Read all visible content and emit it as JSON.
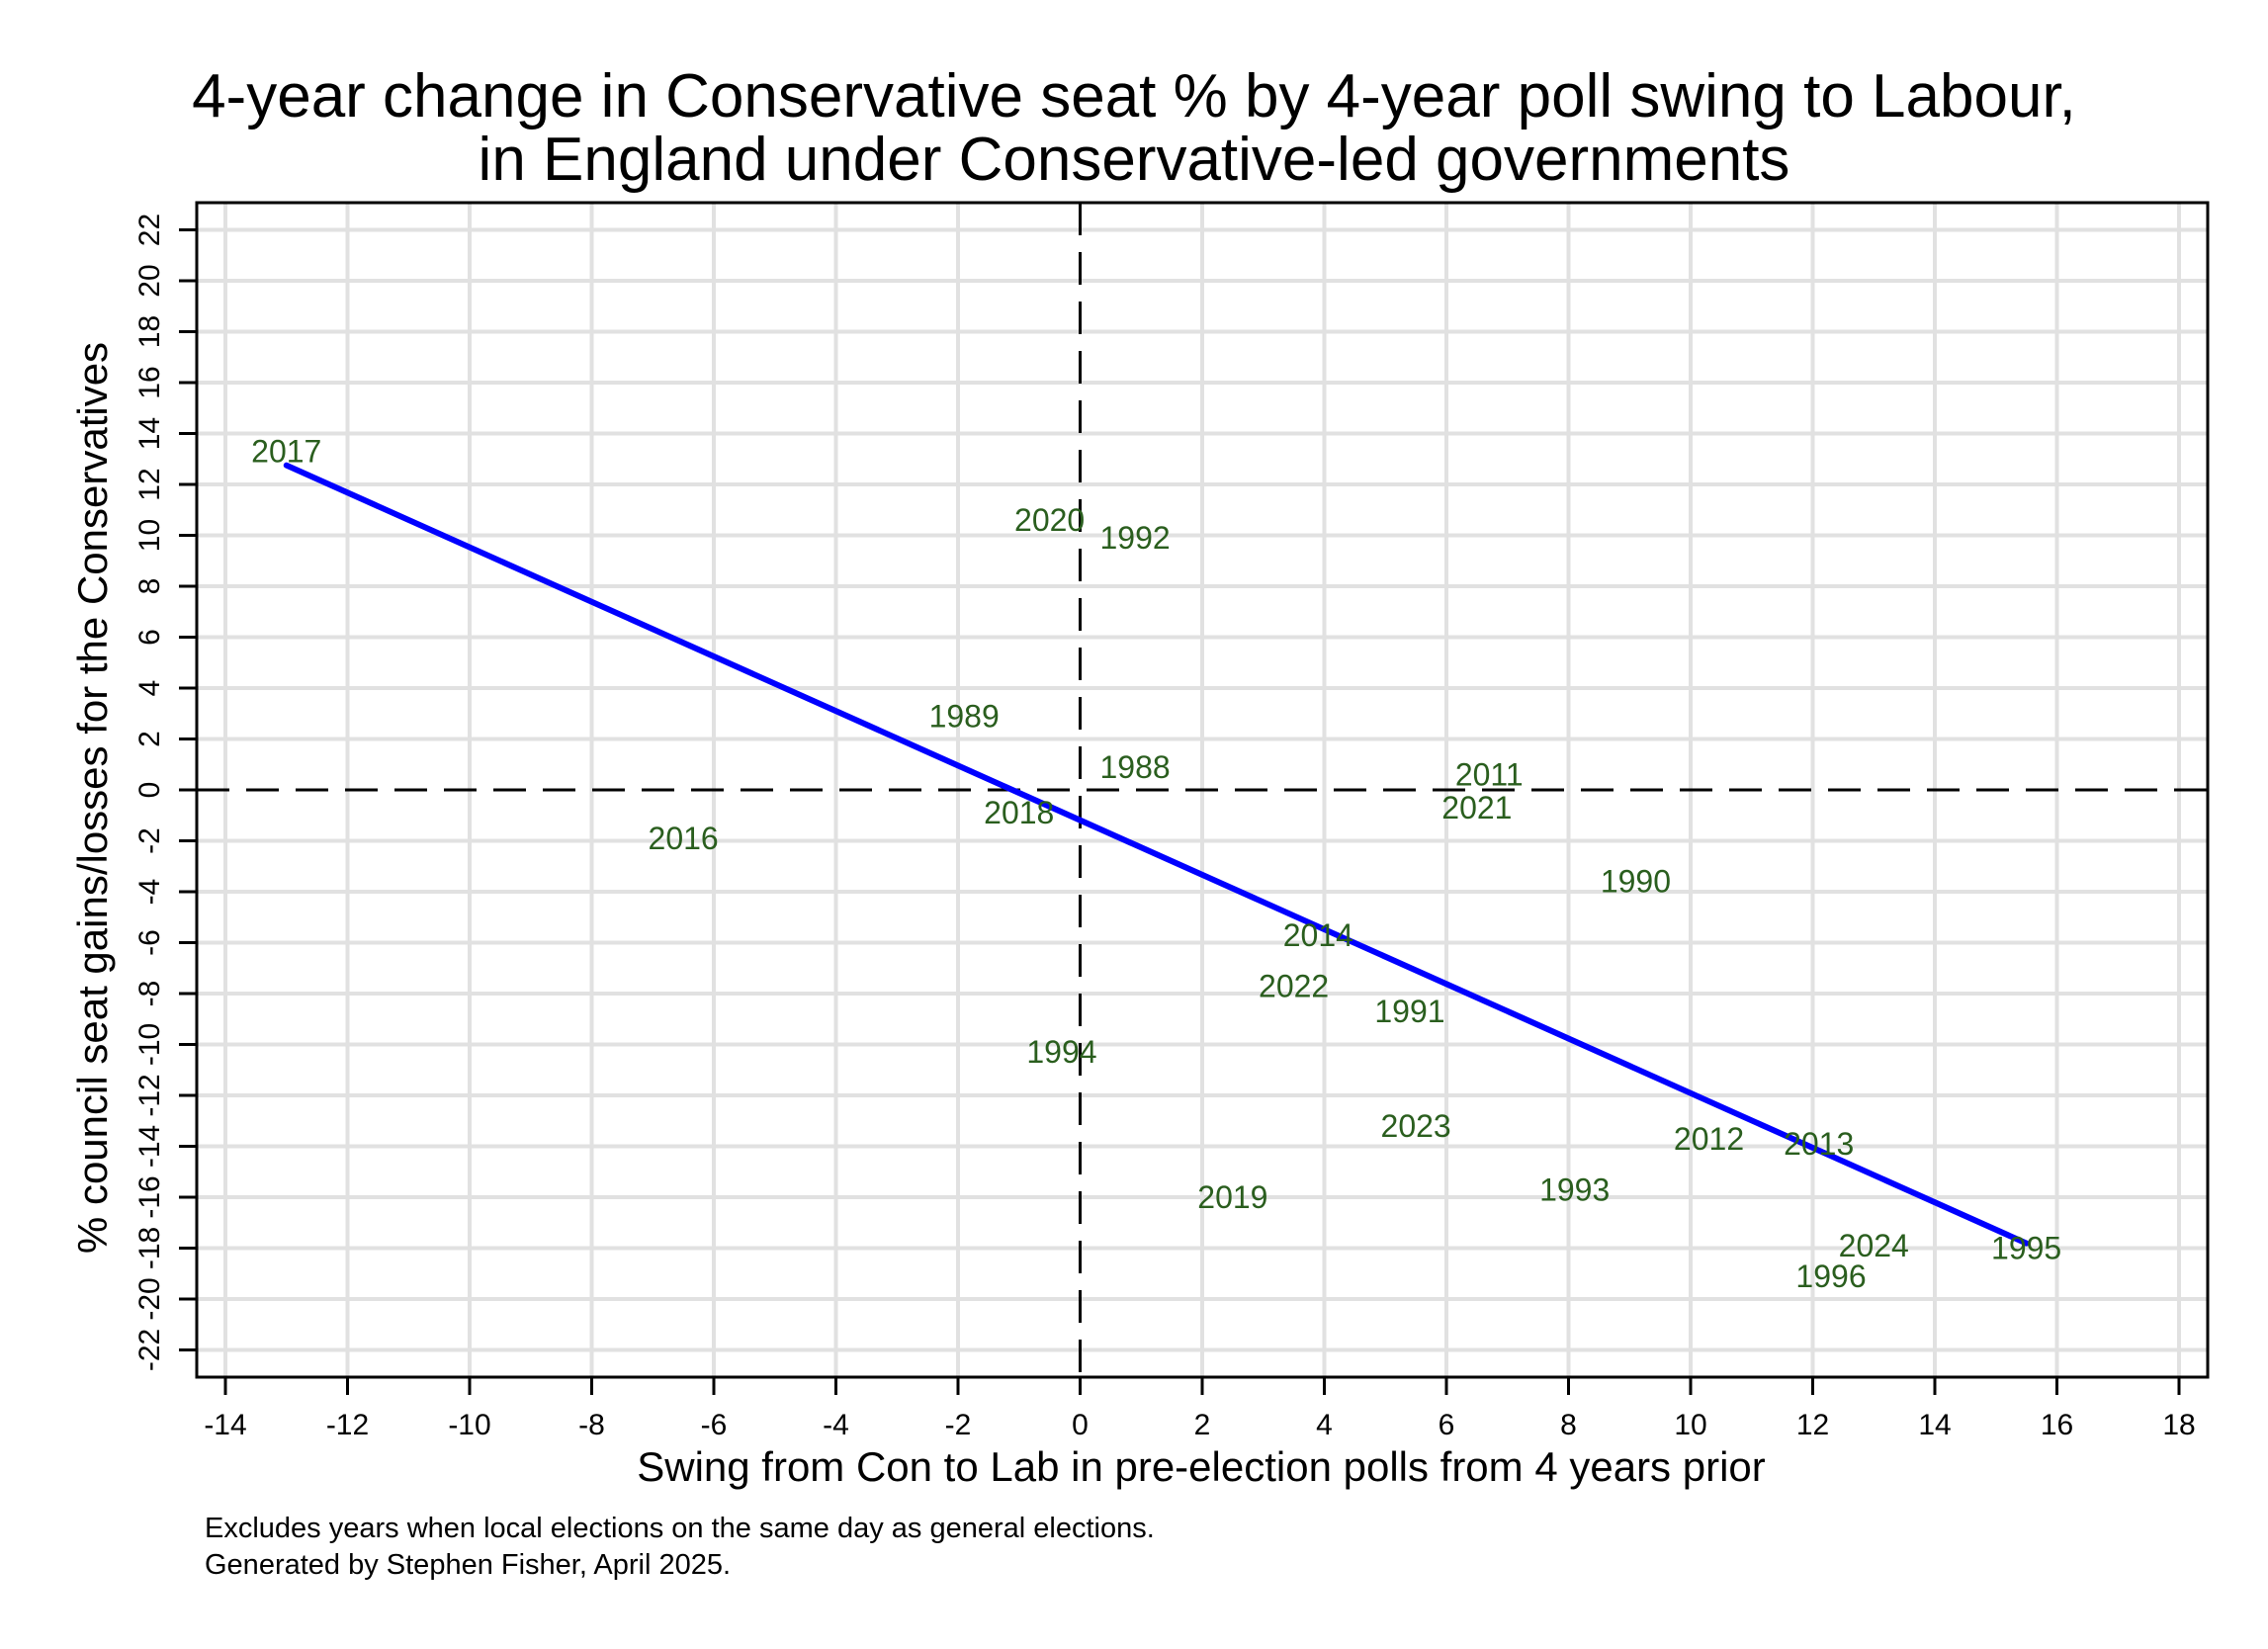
{
  "chart_data": {
    "type": "scatter",
    "title": [
      "4-year change in Conservative seat % by 4-year poll swing to Labour,",
      "in England under Conservative-led governments"
    ],
    "xlabel": "Swing from Con to Lab in pre-election polls from 4 years prior",
    "ylabel": "% council seat gains/losses for the Conservatives",
    "xlim": [
      -14.5,
      18.7
    ],
    "ylim": [
      -23.3,
      23.3
    ],
    "xticks": [
      -14,
      -12,
      -10,
      -8,
      -6,
      -4,
      -2,
      0,
      2,
      4,
      6,
      8,
      10,
      12,
      14,
      16,
      18
    ],
    "yticks": [
      -22,
      -20,
      -18,
      -16,
      -14,
      -12,
      -10,
      -8,
      -6,
      -4,
      -2,
      0,
      2,
      4,
      6,
      8,
      10,
      12,
      14,
      16,
      18,
      20,
      22
    ],
    "grid": true,
    "reference_lines": {
      "x": 0,
      "y": 0,
      "style": "dashed"
    },
    "marker_labels_color": "#2a5e1e",
    "points": [
      {
        "label": "2017",
        "x": -13.0,
        "y": 13.3
      },
      {
        "label": "2020",
        "x": -0.5,
        "y": 10.6
      },
      {
        "label": "1992",
        "x": 0.9,
        "y": 9.9
      },
      {
        "label": "1989",
        "x": -1.9,
        "y": 2.9
      },
      {
        "label": "1988",
        "x": 0.9,
        "y": 0.9
      },
      {
        "label": "2018",
        "x": -1.0,
        "y": -0.9
      },
      {
        "label": "2016",
        "x": -6.5,
        "y": -1.9
      },
      {
        "label": "2011",
        "x": 6.7,
        "y": 0.6
      },
      {
        "label": "2021",
        "x": 6.5,
        "y": -0.7
      },
      {
        "label": "1990",
        "x": 9.1,
        "y": -3.6
      },
      {
        "label": "2014",
        "x": 3.9,
        "y": -5.7
      },
      {
        "label": "2022",
        "x": 3.5,
        "y": -7.7
      },
      {
        "label": "1991",
        "x": 5.4,
        "y": -8.7
      },
      {
        "label": "1994",
        "x": -0.3,
        "y": -10.3
      },
      {
        "label": "2023",
        "x": 5.5,
        "y": -13.2
      },
      {
        "label": "2012",
        "x": 10.3,
        "y": -13.7
      },
      {
        "label": "2013",
        "x": 12.1,
        "y": -13.9
      },
      {
        "label": "2019",
        "x": 2.5,
        "y": -16.0
      },
      {
        "label": "1993",
        "x": 8.1,
        "y": -15.7
      },
      {
        "label": "2024",
        "x": 13.0,
        "y": -17.9
      },
      {
        "label": "1995",
        "x": 15.5,
        "y": -18.0
      },
      {
        "label": "1996",
        "x": 12.3,
        "y": -19.1
      }
    ],
    "fit_line": {
      "color": "#0000ff",
      "x": [
        -13.0,
        15.5
      ],
      "y": [
        12.75,
        -17.81
      ]
    },
    "notes": [
      "Excludes years when local elections on the same day as general elections.",
      "Generated by Stephen Fisher, April 2025."
    ]
  }
}
